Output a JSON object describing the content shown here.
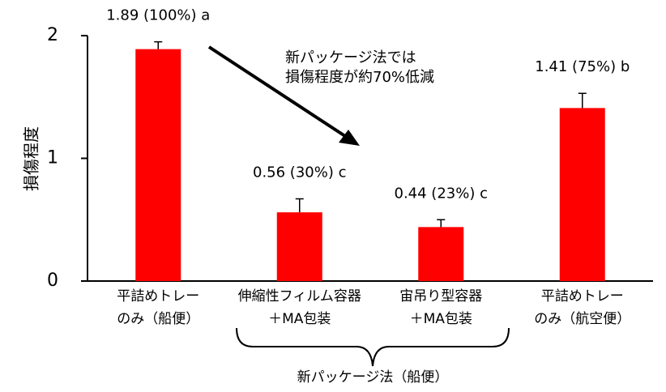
{
  "chart_data": {
    "type": "bar",
    "y_label": "損傷程度",
    "categories": [
      [
        "平詰めトレー",
        "のみ（船便）"
      ],
      [
        "伸縮性フィルム容器",
        "＋MA包装"
      ],
      [
        "宙吊り型容器",
        "＋MA包装"
      ],
      [
        "平詰めトレー",
        "のみ（航空便）"
      ]
    ],
    "values": [
      1.89,
      0.56,
      0.44,
      1.41
    ],
    "errors": [
      0.06,
      0.11,
      0.06,
      0.12
    ],
    "value_labels": [
      "1.89 (100%) a",
      "0.56 (30%) c",
      "0.44 (23%) c",
      "1.41 (75%) b"
    ],
    "color": "#ff0000",
    "ylim": [
      0,
      2
    ],
    "yticks": [
      0,
      1,
      2
    ],
    "annotation": [
      "新パッケージ法では",
      "損傷程度が約70%低減"
    ],
    "group_label": "新パッケージ法（船便）"
  }
}
